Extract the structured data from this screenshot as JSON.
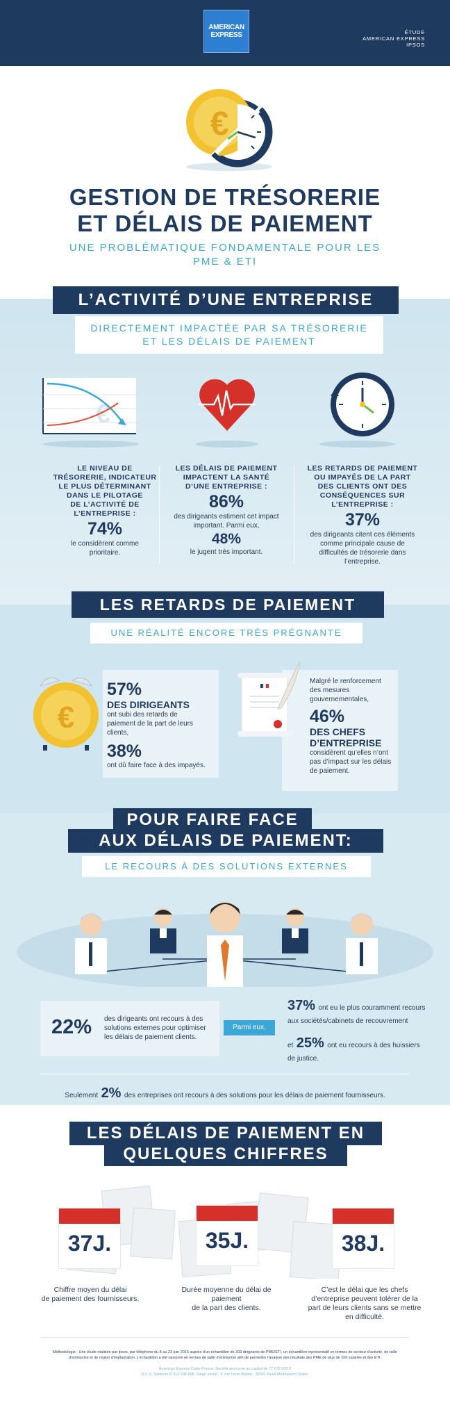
{
  "header": {
    "logo_line1": "AMERICAN",
    "logo_line2": "EXPRESS",
    "study_line1": "ÉTUDE",
    "study_line2": "AMERICAN EXPRESS",
    "study_line3": "IPSOS"
  },
  "title": {
    "line1": "GESTION DE TRÉSORERIE",
    "line2": "ET DÉLAIS DE PAIEMENT",
    "subtitle_line1": "UNE PROBLÉMATIQUE FONDAMENTALE POUR LES",
    "subtitle_line2": "PME & ETI"
  },
  "section1": {
    "banner": "L’ACTIVITÉ D’UNE ENTREPRISE",
    "sub_line1": "DIRECTEMENT IMPACTÉE PAR SA TRÉSORERIE",
    "sub_line2": "ET LES DÉLAIS DE PAIEMENT",
    "col1": {
      "head": [
        "LE NIVEAU DE",
        "TRÉSORERIE, INDICATEUR",
        "LE PLUS DÉTERMINANT",
        "DANS LE PILOTAGE",
        "DE L’ACTIVITÉ DE",
        "L’ENTREPRISE :"
      ],
      "pct": "74%",
      "text": [
        "le considèrent comme",
        "prioritaire."
      ]
    },
    "col2": {
      "head": [
        "LES DÉLAIS DE PAIEMENT",
        "IMPACTENT LA SANTÉ",
        "D’UNE ENTREPRISE :"
      ],
      "pct": "86%",
      "text": [
        "des dirigeants estiment cet impact",
        "important. Parmi eux,"
      ],
      "pct2": "48%",
      "text2": "le jugent très important."
    },
    "col3": {
      "head": [
        "LES RETARDS DE PAIEMENT",
        "OU IMPAYÉS DE LA PART",
        "DES CLIENTS ONT DES",
        "CONSÉQUENCES SUR",
        "L’ENTREPRISE :"
      ],
      "pct": "37%",
      "text": [
        "des dirigeants citent ces éléments",
        "comme principale cause de",
        "difficultés de trésorerie dans",
        "l’entreprise."
      ]
    }
  },
  "section2": {
    "banner": "LES RETARDS DE PAIEMENT",
    "sub": "UNE RÉALITÉ ENCORE TRÈS PRÉGNANTE",
    "left": {
      "pct": "57%",
      "bold": "DES DIRIGEANTS",
      "text": [
        "ont subi des retards de",
        "paiement de la part de leurs",
        "clients,"
      ],
      "pct2": "38%",
      "text2": "ont dû faire face à des impayés."
    },
    "right": {
      "text": [
        "Malgré le renforcement",
        "des mesures",
        "gouvernementales,"
      ],
      "pct": "46%",
      "bold": [
        "DES CHEFS",
        "D’ENTREPRISE"
      ],
      "text2": [
        "considèrent qu’elles n’ont",
        "pas d’impact sur les délais",
        "de paiement."
      ]
    }
  },
  "section3": {
    "banner_line1": "POUR FAIRE FACE",
    "banner_line2": "AUX DÉLAIS DE PAIEMENT:",
    "sub": "LE RECOURS À DES SOLUTIONS EXTERNES",
    "pct": "22%",
    "text": [
      "des dirigeants ont recours à des",
      "solutions externes pour optimiser",
      "les délais de paiement clients."
    ],
    "parmi": "Parmi eux,",
    "pct_a": "37%",
    "text_a": [
      "ont eu le plus couramment",
      "recours aux sociétés/cabinets de",
      "recouvrement"
    ],
    "et": "et",
    "pct_b": "25%",
    "text_b": [
      "ont eu recours à des",
      "huissiers de justice."
    ],
    "only_prefix": "Seulement",
    "only_pct": "2%",
    "only_text": "des entreprises ont recours à des solutions pour les délais de paiement fournisseurs."
  },
  "section4": {
    "banner_line1": "LES DÉLAIS DE PAIEMENT EN",
    "banner_line2": "QUELQUES CHIFFRES",
    "items": [
      {
        "value": "37J.",
        "text": [
          "Chiffre moyen du délai",
          "de paiement des fournisseurs."
        ]
      },
      {
        "value": "35J.",
        "text": [
          "Durée moyenne du délai de",
          "paiement",
          "de la part des clients."
        ]
      },
      {
        "value": "38J.",
        "text": [
          "C’est le délai que les chefs",
          "d’entreprise peuvent tolérer de la",
          "part de leurs clients sans se mettre",
          "en difficulté."
        ]
      }
    ]
  },
  "footer": {
    "method": "Méthodologie : Une étude réalisée par Ipsos, par téléphone du 8 au 23 juin 2016 auprès d’un échantillon de 303 dirigeants de PME/ETI, un échantillon représentatif en termes de secteur d’activité, de taille",
    "method2": "d’entreprise et de région d’implantation. L’échantillon a été raisonné en termes de taille d’entreprise afin de permettre l’analyse des résultats des PME de plus de 100 salariés et des ETI.",
    "legal1": "American Express Carte-France, Société anonyme au capital de 77 072 033 €",
    "legal2": "R.C.S. Nanterre B 313 536 898. Siège social : 4, rue Louis Blériot - 92561 Rueil-Malmaison Cedex."
  },
  "colors": {
    "navy": "#1f3a5f",
    "accent": "#3aa7d6",
    "bg_light": "#cfe5ef",
    "gold": "#f2c230",
    "red": "#d63a2f"
  }
}
